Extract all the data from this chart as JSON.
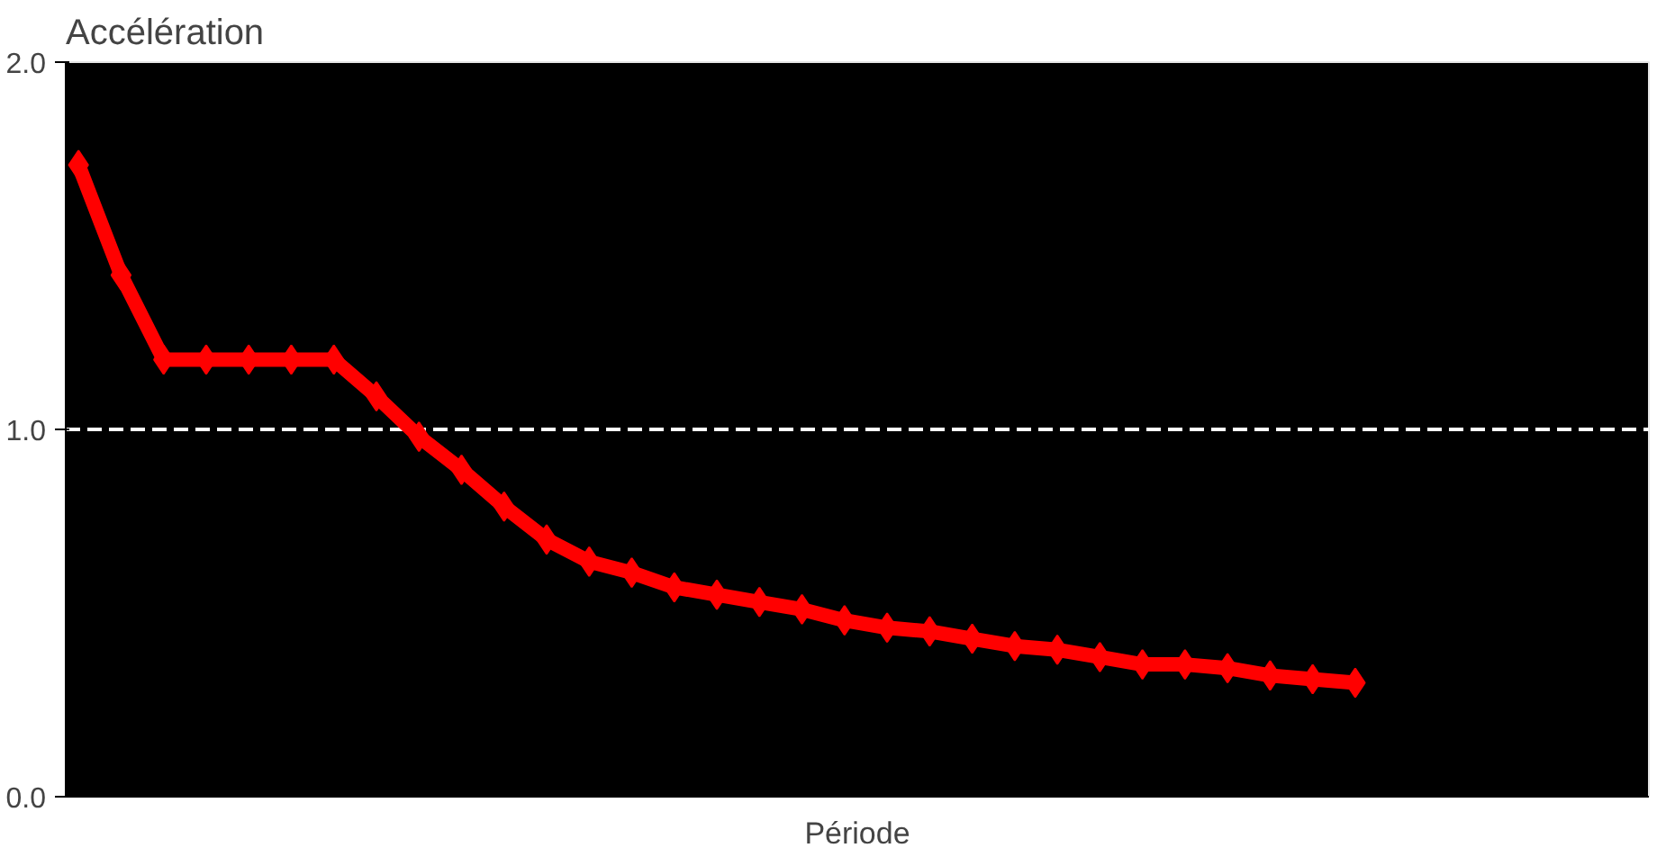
{
  "chart_data": {
    "type": "line",
    "title": "Accélération",
    "xlabel": "Période",
    "categories": [
      null,
      null,
      null,
      null,
      null,
      null,
      null,
      null,
      null,
      null,
      null,
      null,
      null,
      null,
      null,
      null,
      null,
      null,
      null,
      null,
      null,
      null,
      null,
      null,
      null,
      null,
      null,
      null,
      null,
      null,
      null
    ],
    "series": [
      {
        "color": "#ff0000",
        "values": [
          1.72,
          1.42,
          1.19,
          1.19,
          1.19,
          1.19,
          1.19,
          1.09,
          0.98,
          0.89,
          0.79,
          0.7,
          0.64,
          0.61,
          0.57,
          0.55,
          0.53,
          0.51,
          0.48,
          0.46,
          0.45,
          0.43,
          0.41,
          0.4,
          0.38,
          0.36,
          0.36,
          0.35,
          0.33,
          0.32,
          0.31
        ]
      }
    ],
    "ylim": [
      0,
      2
    ],
    "yticks": [
      {
        "value": 0,
        "label": "0.0"
      },
      {
        "value": 1,
        "label": "1.0"
      },
      {
        "value": 2,
        "label": "2.0"
      }
    ],
    "grid": "y",
    "marker": "diamond",
    "line_style": "solid"
  }
}
